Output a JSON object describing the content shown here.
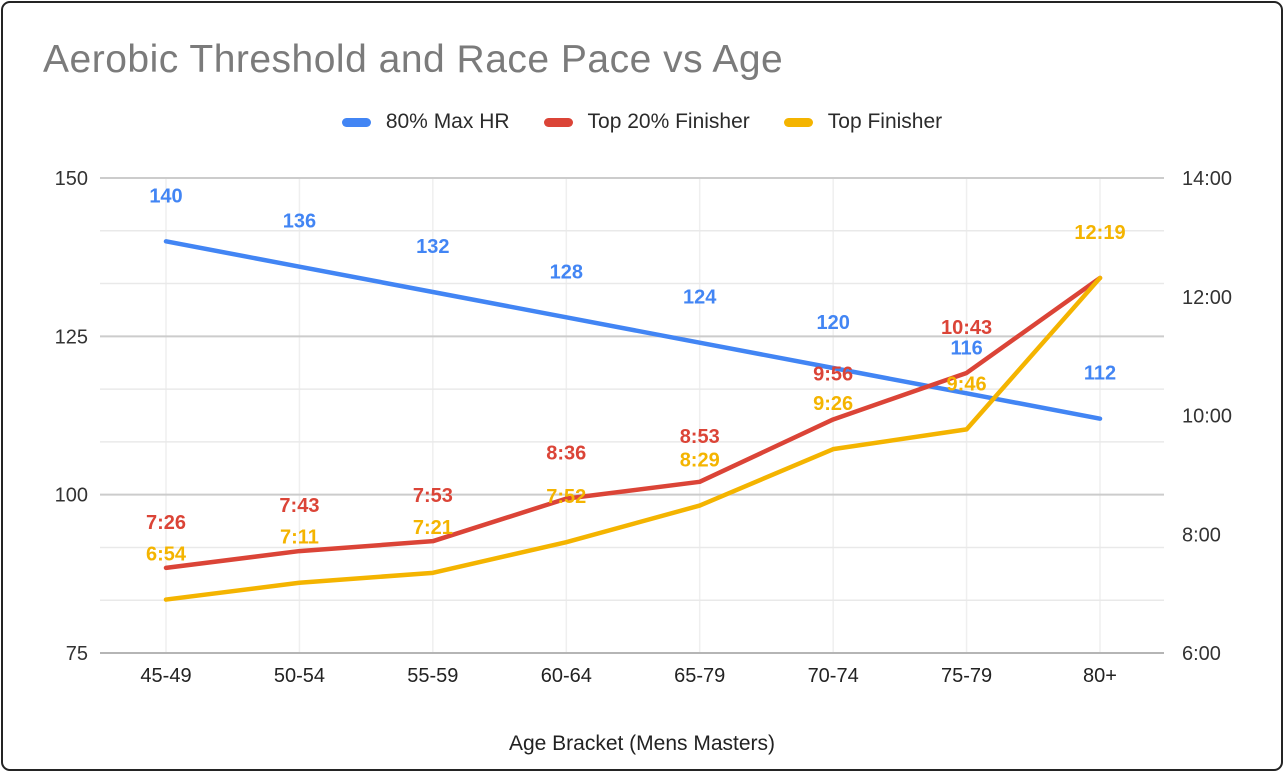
{
  "theme": {
    "background": "#ffffff",
    "border_color": "#242424",
    "title_color": "#7b7b7b",
    "axis_text_color": "#333333",
    "gridline_major": "#cccccc",
    "gridline_minor": "#e9e9e9",
    "gridline_vertical": "#efefef",
    "axis_line_bottom": "#b5b5b5"
  },
  "chart_data": {
    "type": "line",
    "title": "Aerobic Threshold and Race Pace vs Age",
    "xlabel": "Age Bracket (Mens Masters)",
    "legend_position": "top",
    "grid": true,
    "categories": [
      "45-49",
      "50-54",
      "55-59",
      "60-64",
      "65-79",
      "70-74",
      "75-79",
      "80+"
    ],
    "left_axis": {
      "ticks": [
        "150",
        "125",
        "100",
        "75"
      ],
      "max": 150,
      "min": 75,
      "minor_divisions_per_major": 3
    },
    "right_axis": {
      "ticks": [
        "14:00",
        "12:00",
        "10:00",
        "8:00",
        "6:00"
      ],
      "max": "14:00",
      "min": "6:00"
    },
    "series": [
      {
        "name": "80% Max HR",
        "color": "#4285F4",
        "axis": "left",
        "values": [
          140,
          136,
          132,
          128,
          124,
          120,
          116,
          112
        ],
        "labels": [
          "140",
          "136",
          "132",
          "128",
          "124",
          "120",
          "116",
          "112"
        ]
      },
      {
        "name": "Top 20% Finisher",
        "color": "#DB4437",
        "axis": "right",
        "values": [
          "7:26",
          "7:43",
          "7:53",
          "8:36",
          "8:53",
          "9:56",
          "10:43",
          "12:19"
        ],
        "labels": [
          "7:26",
          "7:43",
          "7:53",
          "8:36",
          "8:53",
          "9:56",
          "10:43",
          "12:19"
        ],
        "hidden_label_indices": [
          7
        ]
      },
      {
        "name": "Top Finisher",
        "color": "#F4B400",
        "axis": "right",
        "values": [
          "6:54",
          "7:11",
          "7:21",
          "7:52",
          "8:29",
          "9:26",
          "9:46",
          "12:19"
        ],
        "labels": [
          "6:54",
          "7:11",
          "7:21",
          "7:52",
          "8:29",
          "9:26",
          "9:46",
          "12:19"
        ]
      }
    ]
  }
}
